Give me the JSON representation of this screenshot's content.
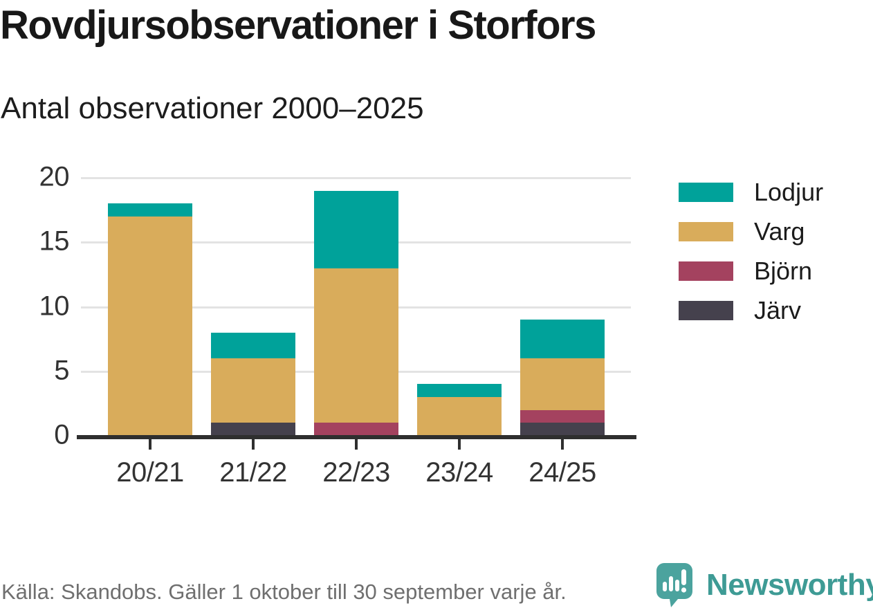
{
  "header": {
    "title": "Rovdjursobservationer i Storfors",
    "subtitle": "Antal observationer 2000–2025"
  },
  "chart_data": {
    "type": "bar",
    "stacked": true,
    "title": "Rovdjursobservationer i Storfors",
    "subtitle": "Antal observationer 2000–2025",
    "categories": [
      "20/21",
      "21/22",
      "22/23",
      "23/24",
      "24/25"
    ],
    "series": [
      {
        "name": "Järv",
        "color": "#45414d",
        "values": [
          0,
          1,
          0,
          0,
          1
        ]
      },
      {
        "name": "Björn",
        "color": "#a4425f",
        "values": [
          0,
          0,
          1,
          0,
          1
        ]
      },
      {
        "name": "Varg",
        "color": "#d9ac5b",
        "values": [
          17,
          5,
          12,
          3,
          4
        ]
      },
      {
        "name": "Lodjur",
        "color": "#00a29a",
        "values": [
          1,
          2,
          6,
          1,
          3
        ]
      }
    ],
    "stack_totals": [
      18,
      8,
      19,
      4,
      9
    ],
    "xlabel": "",
    "ylabel": "",
    "ylim": [
      0,
      20
    ],
    "yticks": [
      0,
      5,
      10,
      15,
      20
    ],
    "grid": "horizontal",
    "legend_position": "right",
    "legend_order": [
      "Lodjur",
      "Varg",
      "Björn",
      "Järv"
    ],
    "colors": {
      "gridline": "#e3e3e3",
      "axis": "#2f2f2f",
      "tick_label": "#333333"
    }
  },
  "footer": {
    "source": "Källa: Skandobs. Gäller 1 oktober till 30 september varje år.",
    "brand": "Newsworthy",
    "brand_color": "#3e9b95",
    "logo_bubble_color": "#4ba39e"
  }
}
